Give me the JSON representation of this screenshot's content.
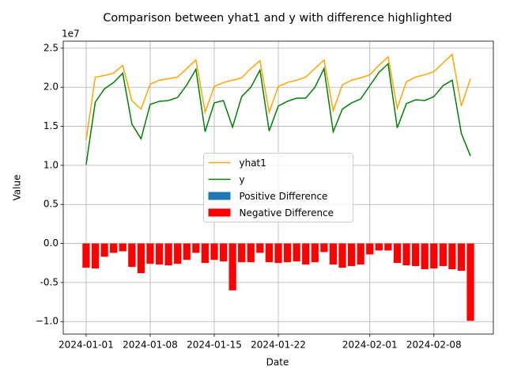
{
  "chart_data": {
    "type": "combo",
    "title": "Comparison between yhat1 and y with difference highlighted",
    "xlabel": "Date",
    "ylabel": "Value",
    "y_offset_label": "1e7",
    "x": [
      "2024-01-01",
      "2024-01-02",
      "2024-01-03",
      "2024-01-04",
      "2024-01-05",
      "2024-01-06",
      "2024-01-07",
      "2024-01-08",
      "2024-01-09",
      "2024-01-10",
      "2024-01-11",
      "2024-01-12",
      "2024-01-13",
      "2024-01-14",
      "2024-01-15",
      "2024-01-16",
      "2024-01-17",
      "2024-01-18",
      "2024-01-19",
      "2024-01-20",
      "2024-01-21",
      "2024-01-22",
      "2024-01-23",
      "2024-01-24",
      "2024-01-25",
      "2024-01-26",
      "2024-01-27",
      "2024-01-28",
      "2024-01-29",
      "2024-01-30",
      "2024-01-31",
      "2024-02-01",
      "2024-02-02",
      "2024-02-03",
      "2024-02-04",
      "2024-02-05",
      "2024-02-06",
      "2024-02-07",
      "2024-02-08",
      "2024-02-09",
      "2024-02-10",
      "2024-02-11",
      "2024-02-12"
    ],
    "series": [
      {
        "name": "yhat1",
        "type": "line",
        "color": "orange",
        "values": [
          1.32,
          2.13,
          2.15,
          2.18,
          2.28,
          1.83,
          1.72,
          2.04,
          2.09,
          2.11,
          2.13,
          2.24,
          2.35,
          1.68,
          2.01,
          2.06,
          2.09,
          2.12,
          2.24,
          2.34,
          1.68,
          2.01,
          2.06,
          2.09,
          2.13,
          2.24,
          2.35,
          1.7,
          2.03,
          2.09,
          2.12,
          2.16,
          2.28,
          2.39,
          1.73,
          2.07,
          2.13,
          2.16,
          2.2,
          2.31,
          2.42,
          1.76,
          2.11
        ]
      },
      {
        "name": "y",
        "type": "line",
        "color": "green",
        "values": [
          1.01,
          1.81,
          1.98,
          2.06,
          2.18,
          1.53,
          1.34,
          1.78,
          1.82,
          1.83,
          1.87,
          2.03,
          2.23,
          1.43,
          1.8,
          1.83,
          1.49,
          1.88,
          2.0,
          2.22,
          1.44,
          1.76,
          1.82,
          1.86,
          1.86,
          2.0,
          2.24,
          1.43,
          1.72,
          1.8,
          1.85,
          2.02,
          2.19,
          2.3,
          1.48,
          1.79,
          1.84,
          1.83,
          1.88,
          2.02,
          2.09,
          1.41,
          1.12
        ]
      },
      {
        "name": "Positive Difference",
        "type": "bar",
        "color": "#1f77b4",
        "values": [
          0,
          0,
          0,
          0,
          0,
          0,
          0,
          0,
          0,
          0,
          0,
          0,
          0,
          0,
          0,
          0,
          0,
          0,
          0,
          0,
          0,
          0,
          0,
          0,
          0,
          0,
          0,
          0,
          0,
          0,
          0,
          0,
          0,
          0,
          0,
          0,
          0,
          0,
          0,
          0,
          0,
          0,
          0
        ]
      },
      {
        "name": "Negative Difference",
        "type": "bar",
        "color": "red",
        "values": [
          -0.31,
          -0.32,
          -0.17,
          -0.12,
          -0.1,
          -0.3,
          -0.38,
          -0.26,
          -0.27,
          -0.28,
          -0.26,
          -0.21,
          -0.12,
          -0.25,
          -0.21,
          -0.23,
          -0.6,
          -0.24,
          -0.24,
          -0.12,
          -0.24,
          -0.25,
          -0.24,
          -0.23,
          -0.27,
          -0.24,
          -0.11,
          -0.27,
          -0.31,
          -0.29,
          -0.27,
          -0.14,
          -0.09,
          -0.09,
          -0.25,
          -0.28,
          -0.29,
          -0.33,
          -0.32,
          -0.29,
          -0.33,
          -0.35,
          -0.99
        ]
      }
    ],
    "xlim": [
      "2023-12-29T12:00:00Z",
      "2024-02-14T12:00:00Z"
    ],
    "xticks": [
      "2024-01-01",
      "2024-01-08",
      "2024-01-15",
      "2024-01-22",
      "2024-02-01",
      "2024-02-08"
    ],
    "ylim": [
      -1.16,
      2.59
    ],
    "yticks": [
      {
        "value": -1,
        "label": "−1.0"
      },
      -0.5,
      {
        "value": 0,
        "label": "0.0"
      },
      0.5,
      {
        "value": 1,
        "label": "1.0"
      },
      1.5,
      {
        "value": 2,
        "label": "2.0"
      },
      2.5
    ],
    "grid": true,
    "legend": "center"
  }
}
